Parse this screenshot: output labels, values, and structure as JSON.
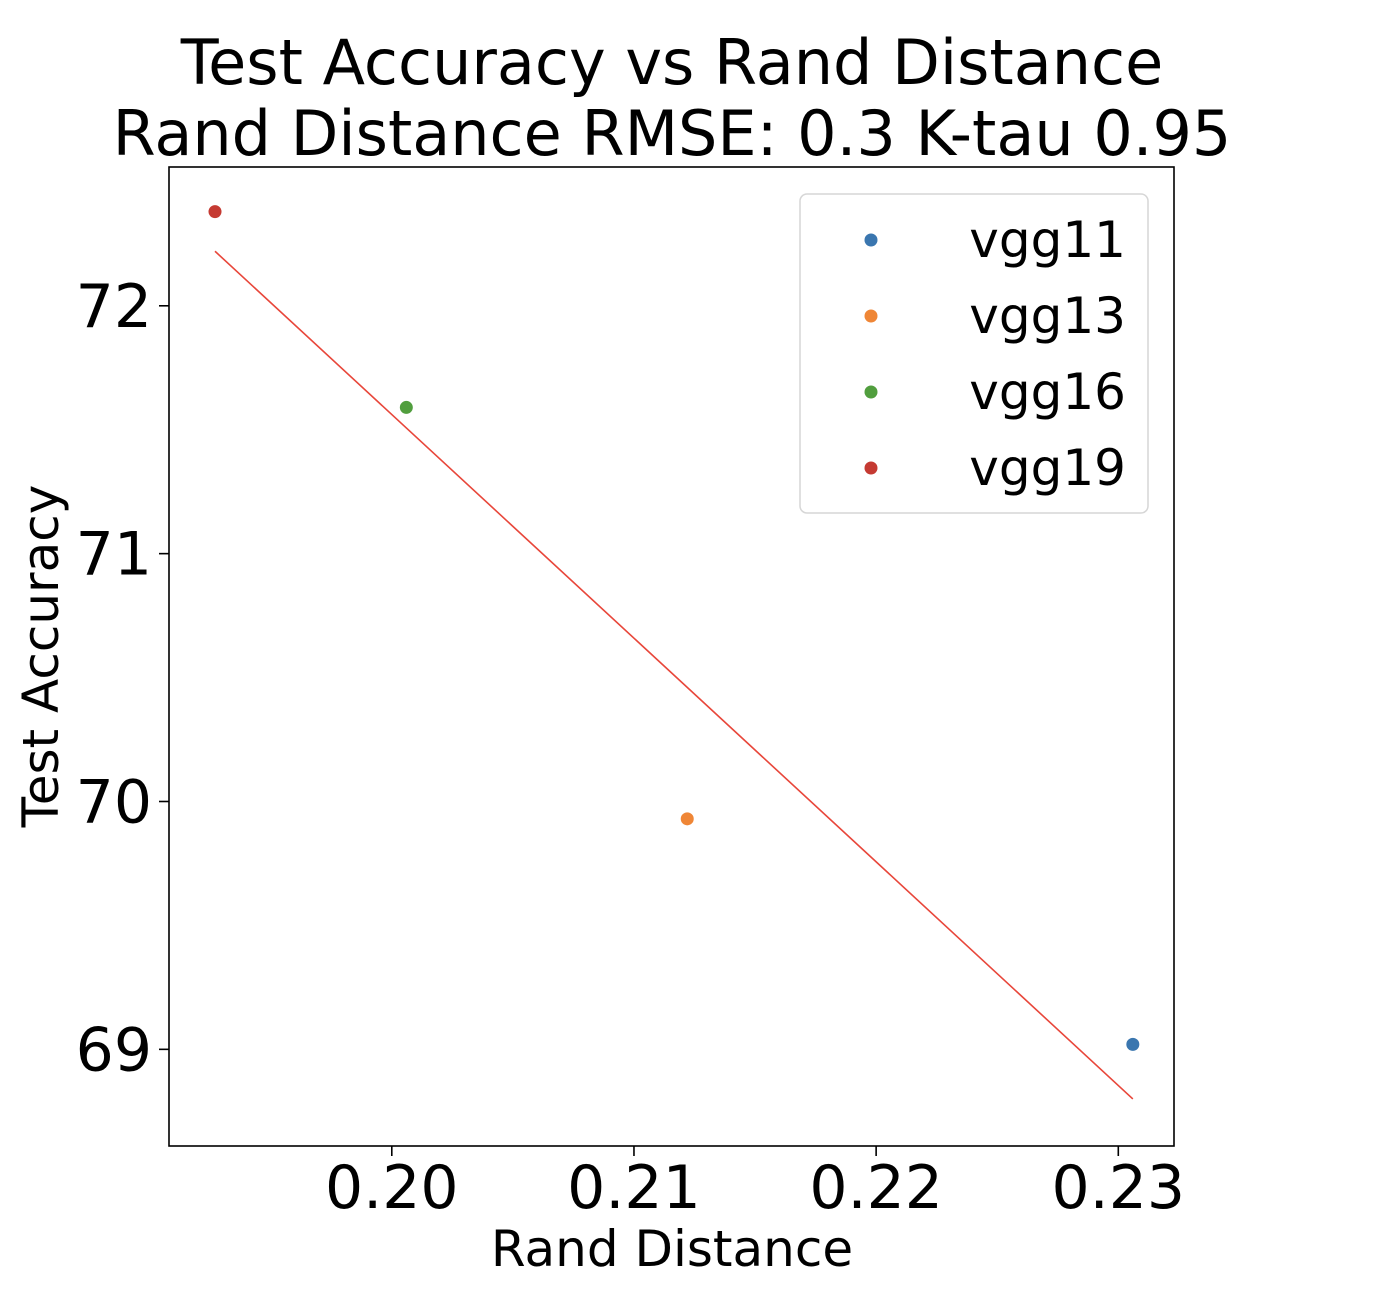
{
  "chart_data": {
    "type": "scatter",
    "title": "Test Accuracy vs Rand Distance",
    "subtitle": "Rand Distance RMSE: 0.3 K-tau 0.95",
    "xlabel": "Rand Distance",
    "ylabel": "Test Accuracy",
    "xlim": [
      0.1908,
      0.2323
    ],
    "ylim": [
      68.61,
      72.56
    ],
    "xticks": [
      0.2,
      0.21,
      0.22,
      0.23
    ],
    "xtick_labels": [
      "0.20",
      "0.21",
      "0.22",
      "0.23"
    ],
    "yticks": [
      69,
      70,
      71,
      72
    ],
    "ytick_labels": [
      "69",
      "70",
      "71",
      "72"
    ],
    "grid": false,
    "legend_position": "top-right",
    "series": [
      {
        "name": "vgg11",
        "color": "#3a76af",
        "points": [
          {
            "x": 0.2306,
            "y": 69.02
          }
        ]
      },
      {
        "name": "vgg13",
        "color": "#ef8636",
        "points": [
          {
            "x": 0.2122,
            "y": 69.93
          }
        ]
      },
      {
        "name": "vgg16",
        "color": "#519e3e",
        "points": [
          {
            "x": 0.2006,
            "y": 71.59
          }
        ]
      },
      {
        "name": "vgg19",
        "color": "#c53a32",
        "points": [
          {
            "x": 0.1927,
            "y": 72.38
          }
        ]
      }
    ],
    "fit_line": {
      "color": "#e8463a",
      "x": [
        0.1927,
        0.2306
      ],
      "y": [
        72.22,
        68.8
      ]
    }
  }
}
